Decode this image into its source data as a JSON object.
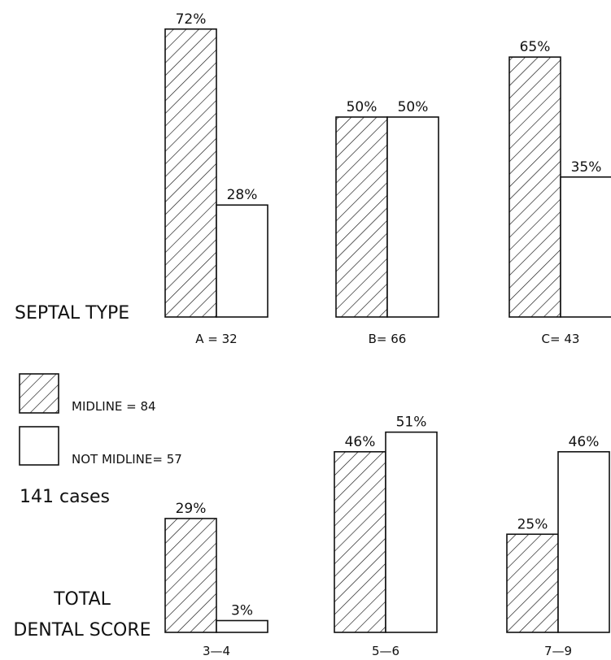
{
  "legend": {
    "midline_label": "MIDLINE = 84",
    "not_midline_label": "NOT MIDLINE= 57",
    "cases_label": "141 cases"
  },
  "chart_data": [
    {
      "type": "bar",
      "ylabel": "SEPTAL TYPE",
      "categories": [
        "A = 32",
        "B= 66",
        "C= 43"
      ],
      "series": [
        {
          "name": "MIDLINE = 84",
          "pattern": "hatched",
          "values": [
            72,
            50,
            65
          ],
          "labels": [
            "72%",
            "50%",
            "65%"
          ]
        },
        {
          "name": "NOT MIDLINE= 57",
          "pattern": "open",
          "values": [
            28,
            50,
            35
          ],
          "labels": [
            "28%",
            "50%",
            "35%"
          ]
        }
      ],
      "ylim": [
        0,
        100
      ],
      "grid": false,
      "legend_position": "left"
    },
    {
      "type": "bar",
      "ylabel": [
        "TOTAL",
        "DENTAL SCORE"
      ],
      "categories": [
        "3—4",
        "5—6",
        "7—9"
      ],
      "series": [
        {
          "name": "MIDLINE = 84",
          "pattern": "hatched",
          "values": [
            29,
            46,
            25
          ],
          "labels": [
            "29%",
            "46%",
            "25%"
          ]
        },
        {
          "name": "NOT MIDLINE= 57",
          "pattern": "open",
          "values": [
            3,
            51,
            46
          ],
          "labels": [
            "3%",
            "51%",
            "46%"
          ]
        }
      ],
      "ylim": [
        0,
        100
      ],
      "grid": false,
      "legend_position": "left"
    }
  ]
}
